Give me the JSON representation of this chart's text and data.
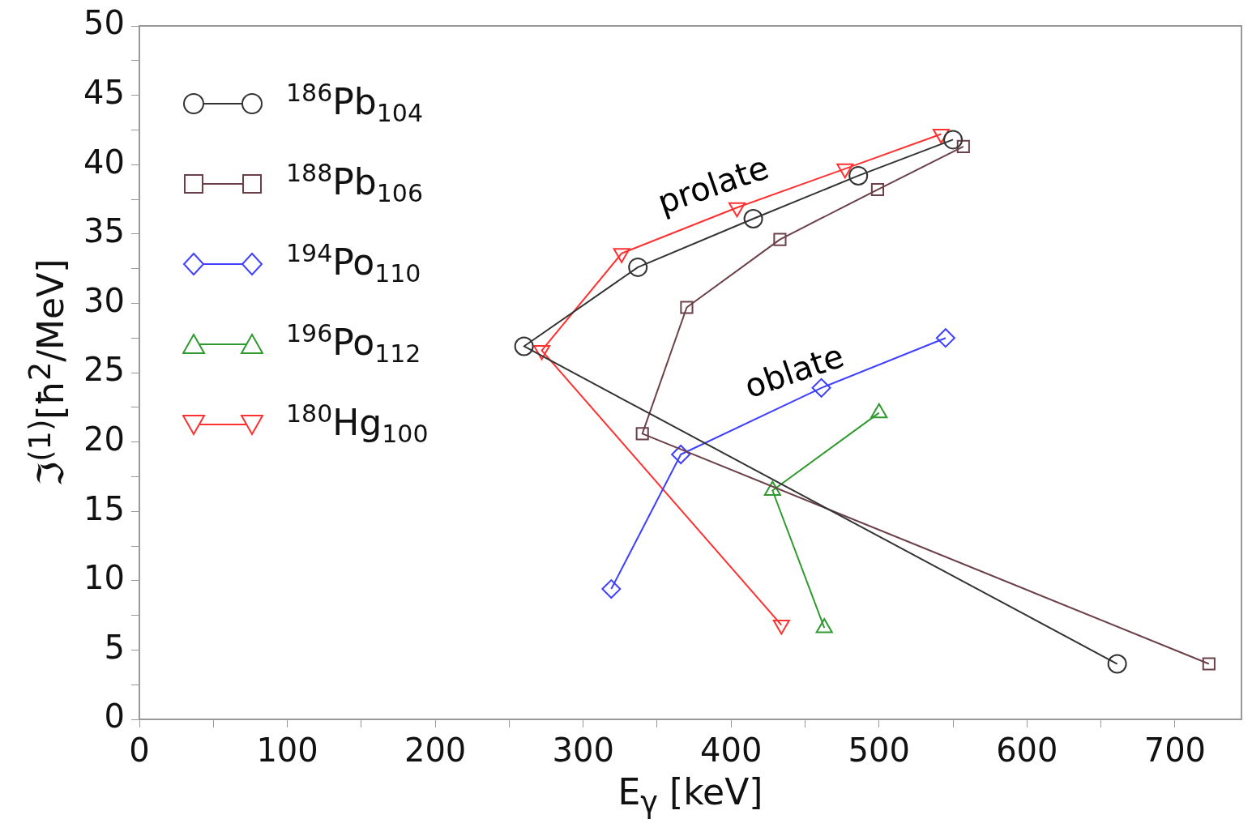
{
  "chart_data": {
    "type": "line",
    "xlabel": "E$_{γ}$ [keV]",
    "ylabel": "ℑ$^{(1)}$[ħ$^{2}$/MeV]",
    "xlim": [
      0,
      745
    ],
    "ylim": [
      0,
      50
    ],
    "xticks": [
      0,
      {
        "value": 50,
        "label": null
      },
      100,
      {
        "value": 150,
        "label": null
      },
      200,
      {
        "value": 250,
        "label": null
      },
      300,
      {
        "value": 350,
        "label": null
      },
      400,
      {
        "value": 450,
        "label": null
      },
      500,
      {
        "value": 550,
        "label": null
      },
      600,
      {
        "value": 650,
        "label": null
      },
      700
    ],
    "yticks": [
      0,
      {
        "value": 2.5,
        "label": null
      },
      5,
      {
        "value": 7.5,
        "label": null
      },
      10,
      {
        "value": 12.5,
        "label": null
      },
      15,
      {
        "value": 17.5,
        "label": null
      },
      20,
      {
        "value": 22.5,
        "label": null
      },
      25,
      {
        "value": 27.5,
        "label": null
      },
      30,
      {
        "value": 32.5,
        "label": null
      },
      35,
      {
        "value": 37.5,
        "label": null
      },
      40,
      {
        "value": 42.5,
        "label": null
      },
      45,
      {
        "value": 47.5,
        "label": null
      },
      50
    ],
    "grid": false,
    "legend": "top left",
    "series": [
      {
        "name": "$^{186}$Pb$_{104}$",
        "color": "#333333",
        "marker": "circle",
        "x": [
          661,
          260,
          337,
          415,
          486,
          550
        ],
        "values": [
          4.0,
          26.9,
          32.6,
          36.1,
          39.2,
          41.8
        ]
      },
      {
        "name": "$^{188}$Pb$_{106}$",
        "color": "#6b4048",
        "marker": "square",
        "x": [
          723,
          340,
          370,
          433,
          499,
          557
        ],
        "values": [
          4.0,
          20.6,
          29.7,
          34.6,
          38.2,
          41.3
        ]
      },
      {
        "name": "$^{194}$Po$_{110}$",
        "color": "#4040ff",
        "marker": "diamond",
        "x": [
          319,
          366,
          461,
          545
        ],
        "values": [
          9.4,
          19.1,
          23.9,
          27.5
        ]
      },
      {
        "name": "$^{196}$Po$_{112}$",
        "color": "#2e992e",
        "marker": "triangle",
        "x": [
          463,
          428,
          500
        ],
        "values": [
          6.6,
          16.5,
          22.1
        ]
      },
      {
        "name": "$^{180}$Hg$_{100}$",
        "color": "#ff3030",
        "marker": "triangle-down",
        "x": [
          434,
          272,
          326,
          404,
          477,
          542
        ],
        "values": [
          6.8,
          26.6,
          33.6,
          36.9,
          39.7,
          42.2
        ]
      }
    ],
    "annotations": [
      "prolate",
      "oblate"
    ]
  }
}
